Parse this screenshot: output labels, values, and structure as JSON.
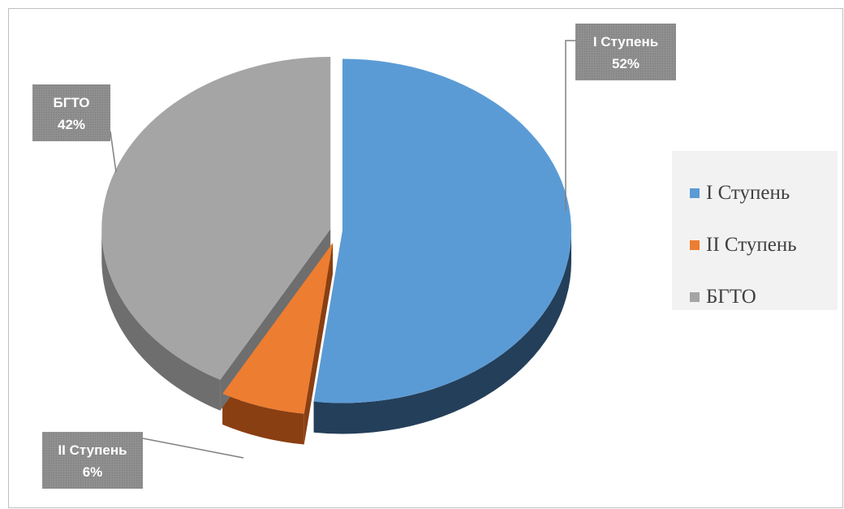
{
  "chart_data": {
    "type": "pie",
    "style": "3d-exploded",
    "title": "",
    "slices": [
      {
        "name": "I Ступень",
        "value": 52,
        "label_name": "I Ступень",
        "label_value": "52%",
        "color": "#5b9bd5",
        "side_color": "#243f5a"
      },
      {
        "name": "II Ступень",
        "value": 6,
        "label_name": "II Ступень",
        "label_value": "6%",
        "color": "#ed7d31",
        "side_color": "#8a3f12"
      },
      {
        "name": "БГТО",
        "value": 42,
        "label_name": "БГТО",
        "label_value": "42%",
        "color": "#a5a5a5",
        "side_color": "#6e6e6e"
      }
    ],
    "legend": {
      "position": "right",
      "entries": [
        "I Ступень",
        "II Ступень",
        "БГТО"
      ]
    },
    "data_label_box_color": "#8c8c8c"
  }
}
